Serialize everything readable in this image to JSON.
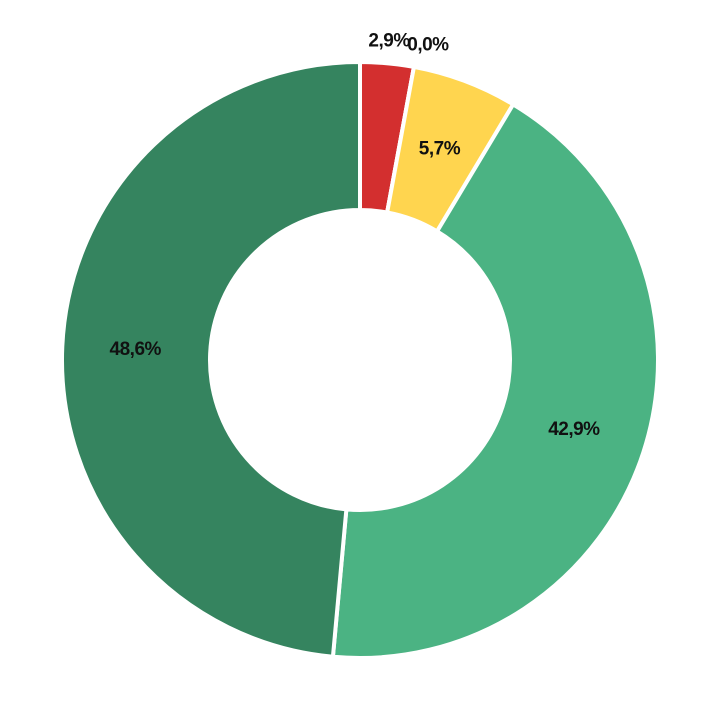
{
  "chart_data": {
    "type": "donut",
    "series": [
      {
        "values": [
          2.9,
          0.0,
          5.7,
          42.9,
          48.6
        ],
        "value_labels": [
          "2,9%",
          "0,0%",
          "5,7%",
          "42,9%",
          "48,6%"
        ],
        "colors": [
          "#d32f2f",
          "#f08c2e",
          "#ffd54f",
          "#4bb383",
          "#35845f"
        ]
      }
    ]
  }
}
